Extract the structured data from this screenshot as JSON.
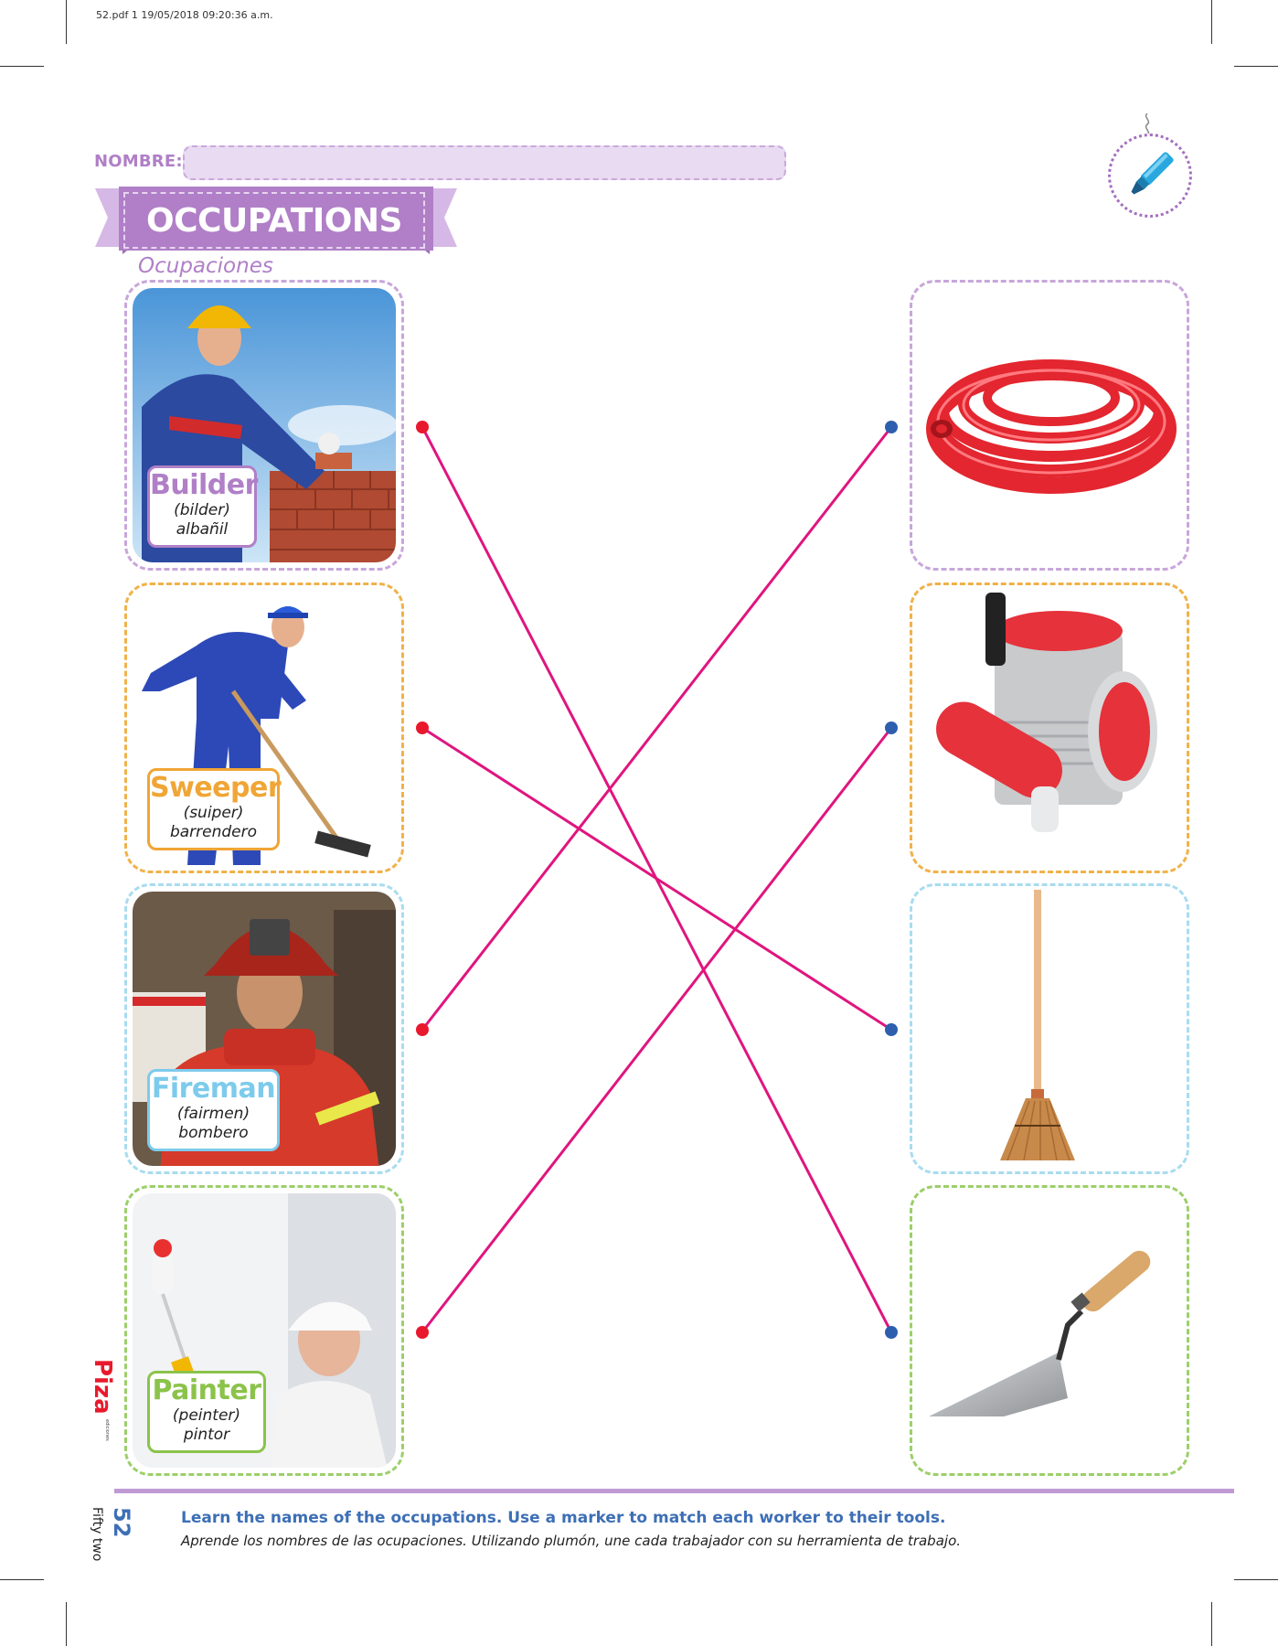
{
  "header": {
    "file_info": "52.pdf   1   19/05/2018   09:20:36 a.m.",
    "name_label": "NOMBRE:",
    "name_value": ""
  },
  "title": {
    "main": "OCCUPATIONS",
    "subtitle": "Ocupaciones"
  },
  "workers": [
    {
      "id": "builder",
      "name": "Builder",
      "pronunciation": "(bilder)",
      "spanish": "albañil",
      "color": "#b07fc7"
    },
    {
      "id": "sweeper",
      "name": "Sweeper",
      "pronunciation": "(suiper)",
      "spanish": "barrendero",
      "color": "#f0a535"
    },
    {
      "id": "fireman",
      "name": "Fireman",
      "pronunciation": "(fairmen)",
      "spanish": "bombero",
      "color": "#7ccbec"
    },
    {
      "id": "painter",
      "name": "Painter",
      "pronunciation": "(peinter)",
      "spanish": "pintor",
      "color": "#8bc34a"
    }
  ],
  "tools": [
    {
      "id": "hose",
      "icon": "fire-hose-icon",
      "color": "#b07fc7"
    },
    {
      "id": "paint",
      "icon": "paint-bucket-roller-icon",
      "color": "#f0a535"
    },
    {
      "id": "broom",
      "icon": "broom-icon",
      "color": "#7ccbec"
    },
    {
      "id": "trowel",
      "icon": "trowel-icon",
      "color": "#8bc34a"
    }
  ],
  "matches": [
    {
      "worker": "builder",
      "tool": "trowel"
    },
    {
      "worker": "sweeper",
      "tool": "broom"
    },
    {
      "worker": "fireman",
      "tool": "hose"
    },
    {
      "worker": "painter",
      "tool": "paint"
    }
  ],
  "colors": {
    "line": "#e0157f",
    "left_dot": "#e8192c",
    "right_dot": "#2e5fae",
    "accent": "#b07fc7"
  },
  "footer": {
    "page_number": "52",
    "page_words": "Fifty two",
    "instruction_en": "Learn the names of the occupations. Use a marker to match each worker to their tools.",
    "instruction_es": "Aprende los nombres de las ocupaciones. Utilizando plumón, une cada trabajador con su herramienta de trabajo.",
    "logo_text": "Piza",
    "logo_sub": "ediciones"
  }
}
